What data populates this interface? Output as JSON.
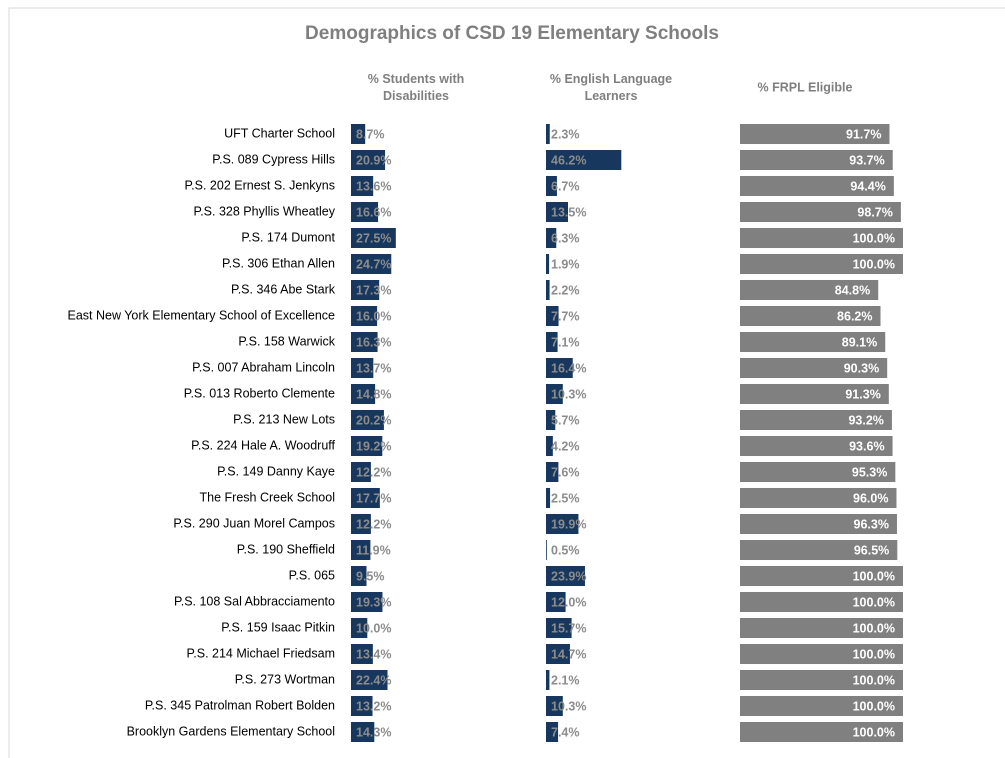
{
  "chart_data": {
    "type": "bar",
    "orientation": "horizontal",
    "title": "Demographics of CSD 19 Elementary Schools",
    "categories": [
      "UFT Charter School",
      "P.S. 089 Cypress Hills",
      "P.S. 202 Ernest S. Jenkyns",
      "P.S. 328 Phyllis Wheatley",
      "P.S. 174 Dumont",
      "P.S. 306 Ethan Allen",
      "P.S. 346 Abe Stark",
      "East New York Elementary School of Excellence",
      "P.S. 158 Warwick",
      "P.S. 007 Abraham Lincoln",
      "P.S. 013 Roberto Clemente",
      "P.S. 213 New Lots",
      "P.S. 224 Hale A. Woodruff",
      "P.S. 149 Danny Kaye",
      "The Fresh Creek School",
      "P.S. 290 Juan Morel Campos",
      "P.S. 190 Sheffield",
      "P.S. 065",
      "P.S. 108 Sal Abbracciamento",
      "P.S. 159 Isaac Pitkin",
      "P.S. 214 Michael Friedsam",
      "P.S. 273 Wortman",
      "P.S. 345 Patrolman Robert Bolden",
      "Brooklyn Gardens Elementary School"
    ],
    "series": [
      {
        "name": "% Students with Disabilities",
        "color": "#17375e",
        "values": [
          8.7,
          20.9,
          13.6,
          16.6,
          27.5,
          24.7,
          17.3,
          16.0,
          16.3,
          13.7,
          14.8,
          20.2,
          19.2,
          12.2,
          17.7,
          12.2,
          11.9,
          9.5,
          19.3,
          10.0,
          13.4,
          22.4,
          13.2,
          14.3
        ],
        "value_labels": [
          "8.7%",
          "20.9%",
          "13.6%",
          "16.6%",
          "27.5%",
          "24.7%",
          "17.3%",
          "16.0%",
          "16.3%",
          "13.7%",
          "14.8%",
          "20.2%",
          "19.2%",
          "12.2%",
          "17.7%",
          "12.2%",
          "11.9%",
          "9.5%",
          "19.3%",
          "10.0%",
          "13.4%",
          "22.4%",
          "13.2%",
          "14.3%"
        ]
      },
      {
        "name": "% English Language Learners",
        "color": "#17375e",
        "values": [
          2.3,
          46.2,
          6.7,
          13.5,
          6.3,
          1.9,
          2.2,
          7.7,
          7.1,
          16.4,
          10.3,
          5.7,
          4.2,
          7.6,
          2.5,
          19.9,
          0.5,
          23.9,
          12.0,
          15.7,
          14.7,
          2.1,
          10.3,
          7.4
        ],
        "value_labels": [
          "2.3%",
          "46.2%",
          "6.7%",
          "13.5%",
          "6.3%",
          "1.9%",
          "2.2%",
          "7.7%",
          "7.1%",
          "16.4%",
          "10.3%",
          "5.7%",
          "4.2%",
          "7.6%",
          "2.5%",
          "19.9%",
          "0.5%",
          "23.9%",
          "12.0%",
          "15.7%",
          "14.7%",
          "2.1%",
          "10.3%",
          "7.4%"
        ]
      },
      {
        "name": "% FRPL Eligible",
        "color": "#808080",
        "values": [
          91.7,
          93.7,
          94.4,
          98.7,
          100.0,
          100.0,
          84.8,
          86.2,
          89.1,
          90.3,
          91.3,
          93.2,
          93.6,
          95.3,
          96.0,
          96.3,
          96.5,
          100.0,
          100.0,
          100.0,
          100.0,
          100.0,
          100.0,
          100.0
        ],
        "value_labels": [
          "91.7%",
          "93.7%",
          "94.4%",
          "98.7%",
          "100.0%",
          "100.0%",
          "84.8%",
          "86.2%",
          "89.1%",
          "90.3%",
          "91.3%",
          "93.2%",
          "93.6%",
          "95.3%",
          "96.0%",
          "96.3%",
          "96.5%",
          "100.0%",
          "100.0%",
          "100.0%",
          "100.0%",
          "100.0%",
          "100.0%",
          "100.0%"
        ]
      }
    ]
  }
}
